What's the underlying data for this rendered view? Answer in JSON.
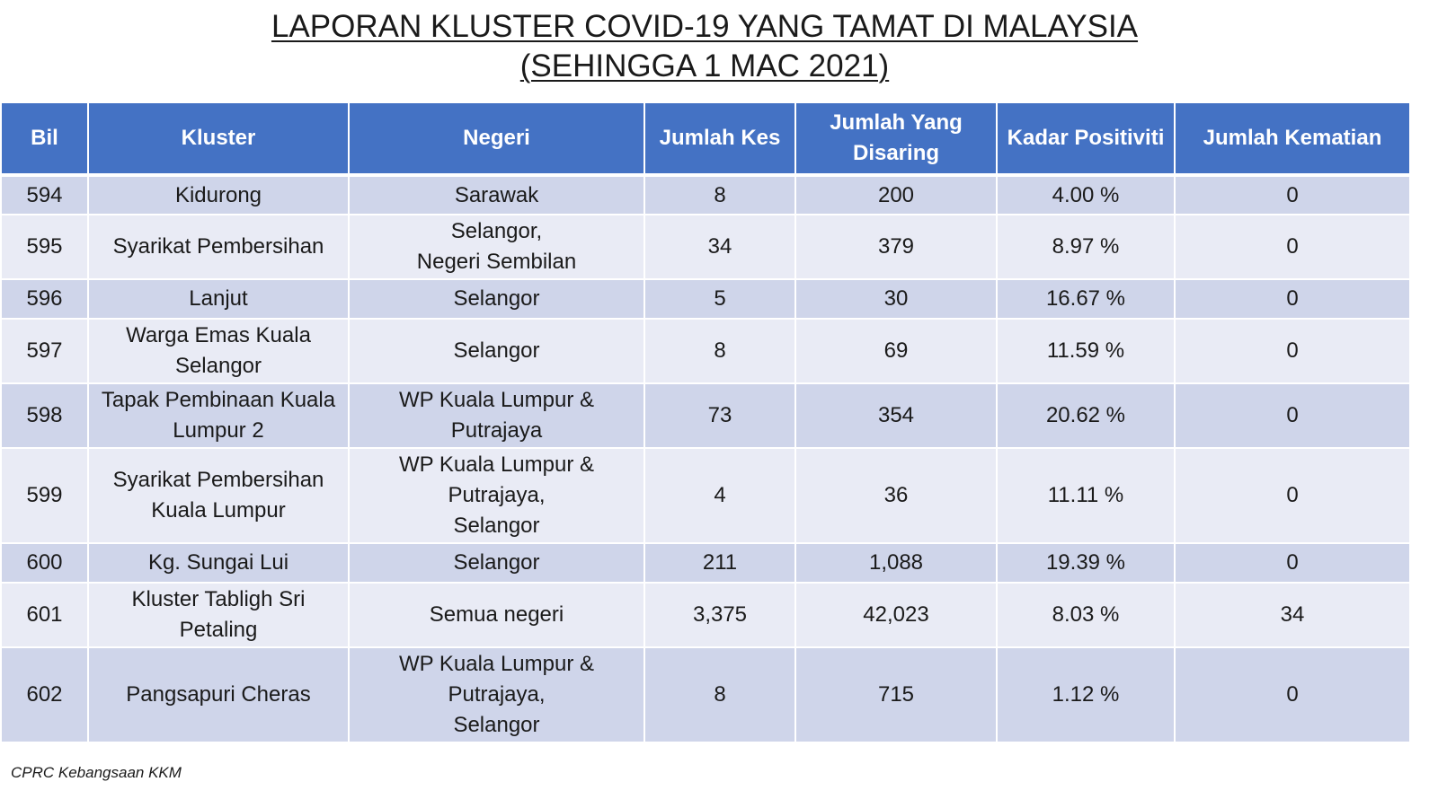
{
  "title": {
    "line1": "LAPORAN KLUSTER COVID-19 YANG TAMAT DI MALAYSIA",
    "line2": "(SEHINGGA 1 MAC 2021)"
  },
  "table": {
    "headers": {
      "bil": "Bil",
      "kluster": "Kluster",
      "negeri": "Negeri",
      "jumlah_kes": "Jumlah Kes",
      "jumlah_disaring_1": "Jumlah Yang",
      "jumlah_disaring_2": "Disaring",
      "kadar_positiviti": "Kadar Positiviti",
      "jumlah_kematian": "Jumlah Kematian"
    },
    "rows": [
      {
        "bil": "594",
        "kluster": [
          "Kidurong"
        ],
        "negeri": [
          "Sarawak"
        ],
        "kes": "8",
        "disaring": "200",
        "positiviti": "4.00 %",
        "kematian": "0"
      },
      {
        "bil": "595",
        "kluster": [
          "Syarikat Pembersihan"
        ],
        "negeri": [
          "Selangor,",
          "Negeri Sembilan"
        ],
        "kes": "34",
        "disaring": "379",
        "positiviti": "8.97 %",
        "kematian": "0"
      },
      {
        "bil": "596",
        "kluster": [
          "Lanjut"
        ],
        "negeri": [
          "Selangor"
        ],
        "kes": "5",
        "disaring": "30",
        "positiviti": "16.67 %",
        "kematian": "0"
      },
      {
        "bil": "597",
        "kluster": [
          "Warga Emas Kuala",
          "Selangor"
        ],
        "negeri": [
          "Selangor"
        ],
        "kes": "8",
        "disaring": "69",
        "positiviti": "11.59 %",
        "kematian": "0"
      },
      {
        "bil": "598",
        "kluster": [
          "Tapak Pembinaan Kuala",
          "Lumpur 2"
        ],
        "negeri": [
          "WP Kuala Lumpur &",
          "Putrajaya"
        ],
        "kes": "73",
        "disaring": "354",
        "positiviti": "20.62 %",
        "kematian": "0"
      },
      {
        "bil": "599",
        "kluster": [
          "Syarikat Pembersihan",
          "Kuala Lumpur"
        ],
        "negeri": [
          "WP Kuala Lumpur &",
          "Putrajaya,",
          "Selangor"
        ],
        "kes": "4",
        "disaring": "36",
        "positiviti": "11.11 %",
        "kematian": "0"
      },
      {
        "bil": "600",
        "kluster": [
          "Kg. Sungai Lui"
        ],
        "negeri": [
          "Selangor"
        ],
        "kes": "211",
        "disaring": "1,088",
        "positiviti": "19.39 %",
        "kematian": "0"
      },
      {
        "bil": "601",
        "kluster": [
          "Kluster Tabligh Sri",
          "Petaling"
        ],
        "negeri": [
          "Semua negeri"
        ],
        "kes": "3,375",
        "disaring": "42,023",
        "positiviti": "8.03 %",
        "kematian": "34"
      },
      {
        "bil": "602",
        "kluster": [
          "Pangsapuri Cheras"
        ],
        "negeri": [
          "WP Kuala Lumpur &",
          "Putrajaya,",
          "Selangor"
        ],
        "kes": "8",
        "disaring": "715",
        "positiviti": "1.12 %",
        "kematian": "0"
      }
    ]
  },
  "source": "CPRC Kebangsaan KKM",
  "colors": {
    "header_bg": "#4472c4",
    "row_dark": "#cfd5ea",
    "row_light": "#e9ebf5"
  }
}
